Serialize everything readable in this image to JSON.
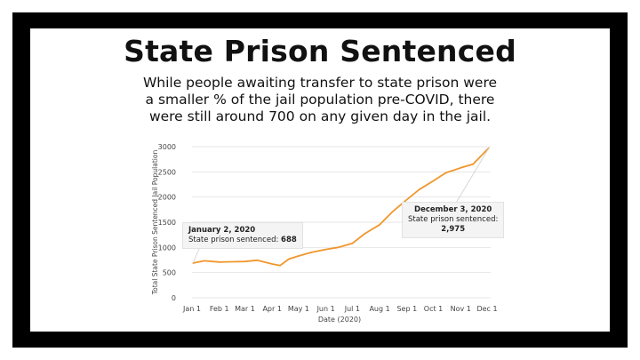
{
  "slide": {
    "title": "State Prison Sentenced",
    "subtitle_lines": [
      "While people awaiting transfer to state prison were",
      "a smaller % of the jail population pre-COVID, there",
      "were still around 700 on any given day in the jail."
    ]
  },
  "chart_data": {
    "type": "line",
    "title": "",
    "xlabel": "Date (2020)",
    "ylabel": "Total State Prison Sentenced Jail Population",
    "ylim": [
      0,
      3000
    ],
    "yticks": [
      "0",
      "500",
      "1000",
      "1500",
      "2000",
      "2500",
      "3000"
    ],
    "xticks": [
      "Jan 1",
      "Feb 1",
      "Mar 1",
      "Apr 1",
      "May 1",
      "Jun 1",
      "Jul 1",
      "Aug 1",
      "Sep 1",
      "Oct 1",
      "Nov 1",
      "Dec 1"
    ],
    "grid": true,
    "line_color": "#f0962b",
    "series": [
      {
        "points": [
          [
            "2020-01-02",
            688
          ],
          [
            "2020-01-15",
            735
          ],
          [
            "2020-02-01",
            710
          ],
          [
            "2020-02-15",
            715
          ],
          [
            "2020-03-01",
            720
          ],
          [
            "2020-03-15",
            745
          ],
          [
            "2020-04-01",
            670
          ],
          [
            "2020-04-10",
            640
          ],
          [
            "2020-04-20",
            770
          ],
          [
            "2020-05-01",
            830
          ],
          [
            "2020-05-15",
            900
          ],
          [
            "2020-06-01",
            960
          ],
          [
            "2020-06-15",
            1000
          ],
          [
            "2020-07-01",
            1080
          ],
          [
            "2020-07-15",
            1270
          ],
          [
            "2020-08-01",
            1450
          ],
          [
            "2020-08-15",
            1700
          ],
          [
            "2020-09-01",
            1950
          ],
          [
            "2020-09-15",
            2150
          ],
          [
            "2020-10-01",
            2320
          ],
          [
            "2020-10-15",
            2480
          ],
          [
            "2020-11-01",
            2580
          ],
          [
            "2020-11-15",
            2650
          ],
          [
            "2020-12-03",
            2975
          ]
        ]
      }
    ],
    "annotations": [
      {
        "date_label": "January 2, 2020",
        "text": "State prison sentenced: ",
        "value": "688"
      },
      {
        "date_label": "December 3, 2020",
        "text": "State prison sentenced:",
        "value": "2,975"
      }
    ]
  }
}
